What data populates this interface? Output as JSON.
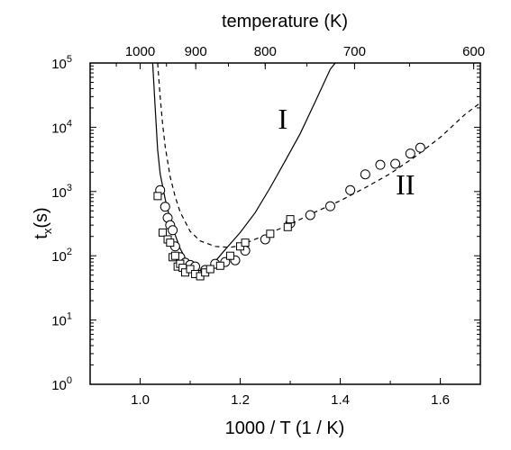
{
  "chart_data": {
    "type": "scatter",
    "title": "",
    "xlabel": "1000 / T (1 / K)",
    "ylabel_main": "t",
    "ylabel_sub": "x",
    "ylabel_suffix": "(s)",
    "top_axis_label": "temperature (K)",
    "xlim": [
      0.9,
      1.68
    ],
    "ylim": [
      1,
      100000
    ],
    "y_scale": "log",
    "grid": false,
    "legend": "none",
    "x_ticks": [
      {
        "value": 1.0,
        "label": "1.0"
      },
      {
        "value": 1.2,
        "label": "1.2"
      },
      {
        "value": 1.4,
        "label": "1.4"
      },
      {
        "value": 1.6,
        "label": "1.6"
      }
    ],
    "top_ticks": [
      {
        "value": 1000,
        "label": "1000"
      },
      {
        "value": 900,
        "label": "900"
      },
      {
        "value": 800,
        "label": "800"
      },
      {
        "value": 700,
        "label": "700"
      },
      {
        "value": 600,
        "label": "600"
      }
    ],
    "y_ticks": [
      {
        "value": 1,
        "base": "10",
        "exp": "0"
      },
      {
        "value": 10,
        "base": "10",
        "exp": "1"
      },
      {
        "value": 100,
        "base": "10",
        "exp": "2"
      },
      {
        "value": 1000,
        "base": "10",
        "exp": "3"
      },
      {
        "value": 10000,
        "base": "10",
        "exp": "4"
      },
      {
        "value": 100000,
        "base": "10",
        "exp": "5"
      }
    ],
    "annotations": [
      {
        "text": "I",
        "x": 1.285,
        "y": 9500
      },
      {
        "text": "II",
        "x": 1.53,
        "y": 900
      }
    ],
    "series": [
      {
        "style": "solid-line",
        "points": [
          [
            1.025,
            100000
          ],
          [
            1.03,
            20000
          ],
          [
            1.035,
            4500
          ],
          [
            1.04,
            1900
          ],
          [
            1.05,
            760
          ],
          [
            1.06,
            370
          ],
          [
            1.07,
            210
          ],
          [
            1.08,
            130
          ],
          [
            1.09,
            92
          ],
          [
            1.1,
            70
          ],
          [
            1.11,
            61
          ],
          [
            1.12,
            59
          ],
          [
            1.13,
            62
          ],
          [
            1.14,
            70
          ],
          [
            1.15,
            82
          ],
          [
            1.17,
            125
          ],
          [
            1.2,
            230
          ],
          [
            1.23,
            470
          ],
          [
            1.26,
            1150
          ],
          [
            1.29,
            3000
          ],
          [
            1.32,
            8000
          ],
          [
            1.35,
            25000
          ],
          [
            1.38,
            80000
          ],
          [
            1.39,
            100000
          ]
        ]
      },
      {
        "style": "dashed-line",
        "points": [
          [
            1.035,
            100000
          ],
          [
            1.04,
            30000
          ],
          [
            1.045,
            11000
          ],
          [
            1.05,
            5000
          ],
          [
            1.06,
            1700
          ],
          [
            1.07,
            830
          ],
          [
            1.08,
            480
          ],
          [
            1.1,
            240
          ],
          [
            1.12,
            170
          ],
          [
            1.15,
            140
          ],
          [
            1.18,
            135
          ],
          [
            1.2,
            145
          ],
          [
            1.25,
            210
          ],
          [
            1.3,
            310
          ],
          [
            1.35,
            480
          ],
          [
            1.4,
            720
          ],
          [
            1.45,
            1150
          ],
          [
            1.5,
            1900
          ],
          [
            1.55,
            3500
          ],
          [
            1.6,
            7000
          ],
          [
            1.65,
            16000
          ],
          [
            1.68,
            24000
          ]
        ]
      },
      {
        "style": "circle-markers",
        "points": [
          [
            1.04,
            1050
          ],
          [
            1.05,
            580
          ],
          [
            1.055,
            390
          ],
          [
            1.06,
            300
          ],
          [
            1.065,
            250
          ],
          [
            1.07,
            140
          ],
          [
            1.08,
            95
          ],
          [
            1.09,
            78
          ],
          [
            1.1,
            72
          ],
          [
            1.11,
            68
          ],
          [
            1.13,
            60
          ],
          [
            1.15,
            75
          ],
          [
            1.17,
            80
          ],
          [
            1.19,
            85
          ],
          [
            1.21,
            120
          ],
          [
            1.25,
            180
          ],
          [
            1.3,
            320
          ],
          [
            1.34,
            430
          ],
          [
            1.38,
            590
          ],
          [
            1.42,
            1050
          ],
          [
            1.45,
            1850
          ],
          [
            1.48,
            2600
          ],
          [
            1.51,
            2700
          ],
          [
            1.54,
            3900
          ],
          [
            1.56,
            4800
          ]
        ]
      },
      {
        "style": "square-markers",
        "points": [
          [
            1.035,
            850
          ],
          [
            1.045,
            230
          ],
          [
            1.055,
            180
          ],
          [
            1.06,
            160
          ],
          [
            1.065,
            95
          ],
          [
            1.07,
            100
          ],
          [
            1.075,
            68
          ],
          [
            1.08,
            75
          ],
          [
            1.085,
            65
          ],
          [
            1.09,
            55
          ],
          [
            1.1,
            62
          ],
          [
            1.11,
            52
          ],
          [
            1.12,
            48
          ],
          [
            1.13,
            55
          ],
          [
            1.14,
            62
          ],
          [
            1.16,
            70
          ],
          [
            1.18,
            100
          ],
          [
            1.2,
            140
          ],
          [
            1.21,
            160
          ],
          [
            1.26,
            220
          ],
          [
            1.295,
            280
          ],
          [
            1.3,
            370
          ]
        ]
      }
    ]
  }
}
